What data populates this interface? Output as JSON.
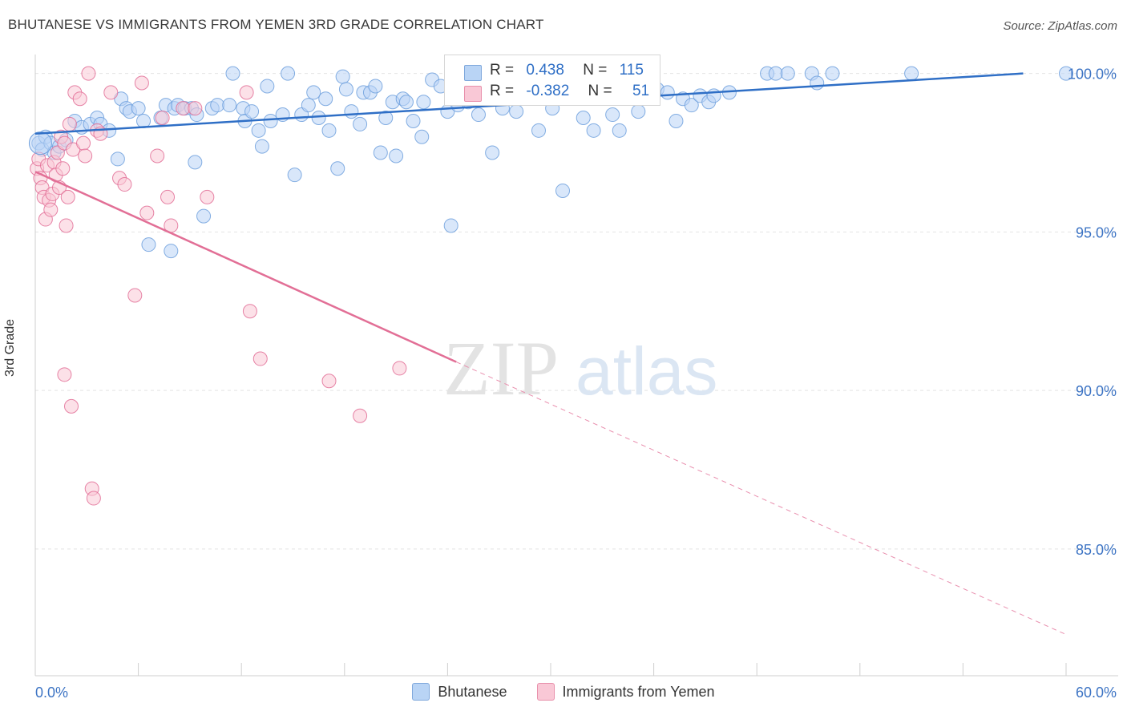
{
  "title": "BHUTANESE VS IMMIGRANTS FROM YEMEN 3RD GRADE CORRELATION CHART",
  "source": "Source: ZipAtlas.com",
  "watermark": {
    "zip": "ZIP",
    "atlas": "atlas"
  },
  "stats": [
    {
      "r_label": "R =",
      "r_value": "0.438",
      "n_label": "N =",
      "n_value": "115",
      "color": "#b9d4f5"
    },
    {
      "r_label": "R =",
      "r_value": "-0.382",
      "n_label": "N =",
      "n_value": "51",
      "color": "#f9c8d6"
    }
  ],
  "legend": [
    {
      "label": "Bhutanese"
    },
    {
      "label": "Immigrants from Yemen"
    }
  ],
  "chart_data": {
    "type": "scatter",
    "title": "BHUTANESE VS IMMIGRANTS FROM YEMEN 3RD GRADE CORRELATION CHART",
    "xlabel": "",
    "ylabel": "3rd Grade",
    "xlim": [
      0,
      60
    ],
    "ylim": [
      81,
      100.8
    ],
    "x_tick_labels": [
      "0.0%",
      "60.0%"
    ],
    "y_ticks": [
      100,
      95,
      90,
      85
    ],
    "y_tick_labels": [
      "100.0%",
      "95.0%",
      "90.0%",
      "85.0%"
    ],
    "grid": true,
    "legend_position": "bottom",
    "series": [
      {
        "name": "Bhutanese",
        "color": "#6fa0dd",
        "fill": "#b9d4f5",
        "trend": {
          "x": [
            0,
            57.5
          ],
          "y": [
            98.1,
            100
          ]
        },
        "points": [
          [
            0.2,
            97.8
          ],
          [
            0.4,
            97.6
          ],
          [
            0.6,
            98.0
          ],
          [
            0.9,
            97.8
          ],
          [
            1.1,
            97.5
          ],
          [
            1.4,
            97.7
          ],
          [
            1.8,
            97.9
          ],
          [
            2.3,
            98.5
          ],
          [
            2.7,
            98.3
          ],
          [
            3.2,
            98.4
          ],
          [
            3.6,
            98.6
          ],
          [
            3.8,
            98.4
          ],
          [
            4.3,
            98.2
          ],
          [
            4.8,
            97.3
          ],
          [
            5.0,
            99.2
          ],
          [
            5.3,
            98.9
          ],
          [
            5.5,
            98.8
          ],
          [
            6.0,
            98.9
          ],
          [
            6.3,
            98.5
          ],
          [
            6.6,
            94.6
          ],
          [
            7.3,
            98.6
          ],
          [
            7.6,
            99.0
          ],
          [
            7.9,
            94.4
          ],
          [
            8.1,
            98.9
          ],
          [
            8.3,
            99.0
          ],
          [
            8.7,
            98.9
          ],
          [
            9.1,
            98.9
          ],
          [
            9.3,
            97.2
          ],
          [
            9.4,
            98.7
          ],
          [
            9.8,
            95.5
          ],
          [
            10.3,
            98.9
          ],
          [
            10.6,
            99.0
          ],
          [
            11.3,
            99.0
          ],
          [
            11.5,
            100.0
          ],
          [
            12.1,
            98.9
          ],
          [
            12.2,
            98.5
          ],
          [
            12.6,
            98.8
          ],
          [
            13.0,
            98.2
          ],
          [
            13.2,
            97.7
          ],
          [
            13.5,
            99.6
          ],
          [
            13.7,
            98.5
          ],
          [
            14.4,
            98.7
          ],
          [
            14.7,
            100.0
          ],
          [
            15.1,
            96.8
          ],
          [
            15.5,
            98.7
          ],
          [
            15.9,
            99.0
          ],
          [
            16.2,
            99.4
          ],
          [
            16.5,
            98.6
          ],
          [
            16.9,
            99.2
          ],
          [
            17.1,
            98.2
          ],
          [
            17.6,
            97.0
          ],
          [
            17.9,
            99.9
          ],
          [
            18.1,
            99.5
          ],
          [
            18.4,
            98.8
          ],
          [
            18.9,
            98.4
          ],
          [
            19.1,
            99.4
          ],
          [
            19.5,
            99.4
          ],
          [
            19.8,
            99.6
          ],
          [
            20.1,
            97.5
          ],
          [
            20.4,
            98.6
          ],
          [
            20.8,
            99.1
          ],
          [
            21.0,
            97.4
          ],
          [
            21.4,
            99.2
          ],
          [
            21.6,
            99.1
          ],
          [
            22.0,
            98.5
          ],
          [
            22.5,
            98.0
          ],
          [
            22.6,
            99.1
          ],
          [
            23.1,
            99.8
          ],
          [
            23.6,
            99.6
          ],
          [
            24.0,
            98.8
          ],
          [
            24.2,
            95.2
          ],
          [
            24.6,
            99.0
          ],
          [
            25.2,
            99.1
          ],
          [
            25.8,
            98.7
          ],
          [
            26.3,
            99.3
          ],
          [
            26.6,
            97.5
          ],
          [
            27.2,
            98.9
          ],
          [
            27.5,
            99.6
          ],
          [
            28.0,
            98.8
          ],
          [
            28.4,
            99.8
          ],
          [
            28.9,
            99.5
          ],
          [
            29.3,
            98.2
          ],
          [
            30.1,
            98.9
          ],
          [
            30.7,
            96.3
          ],
          [
            31.3,
            99.5
          ],
          [
            31.9,
            98.6
          ],
          [
            32.5,
            98.2
          ],
          [
            33.0,
            99.3
          ],
          [
            33.6,
            98.7
          ],
          [
            34.0,
            98.2
          ],
          [
            34.6,
            99.6
          ],
          [
            35.1,
            98.8
          ],
          [
            35.7,
            99.4
          ],
          [
            36.2,
            99.5
          ],
          [
            36.8,
            99.4
          ],
          [
            37.3,
            98.5
          ],
          [
            37.7,
            99.2
          ],
          [
            38.2,
            99.0
          ],
          [
            38.7,
            99.3
          ],
          [
            39.2,
            99.1
          ],
          [
            39.5,
            99.3
          ],
          [
            40.4,
            99.4
          ],
          [
            42.6,
            100.0
          ],
          [
            43.1,
            100.0
          ],
          [
            43.8,
            100.0
          ],
          [
            45.2,
            100.0
          ],
          [
            45.5,
            99.7
          ],
          [
            46.4,
            100.0
          ],
          [
            51.0,
            100.0
          ],
          [
            60.0,
            100.0
          ]
        ]
      },
      {
        "name": "Immigrants from Yemen",
        "color": "#e26f96",
        "fill": "#f9c8d6",
        "trend": {
          "x": [
            0,
            24.5
          ],
          "y": [
            96.9,
            90.9
          ]
        },
        "trend_extension": {
          "x": [
            24.5,
            60
          ],
          "y": [
            90.9,
            82.3
          ]
        },
        "points": [
          [
            0.1,
            97.0
          ],
          [
            0.2,
            97.3
          ],
          [
            0.3,
            96.7
          ],
          [
            0.4,
            96.4
          ],
          [
            0.5,
            96.1
          ],
          [
            0.6,
            95.4
          ],
          [
            0.7,
            97.1
          ],
          [
            0.8,
            96.0
          ],
          [
            0.9,
            95.7
          ],
          [
            1.0,
            96.2
          ],
          [
            1.1,
            97.2
          ],
          [
            1.2,
            96.8
          ],
          [
            1.3,
            97.5
          ],
          [
            1.4,
            96.4
          ],
          [
            1.5,
            98.0
          ],
          [
            1.6,
            97.0
          ],
          [
            1.7,
            97.8
          ],
          [
            1.8,
            95.2
          ],
          [
            1.9,
            96.1
          ],
          [
            2.0,
            98.4
          ],
          [
            2.1,
            89.5
          ],
          [
            2.2,
            97.6
          ],
          [
            2.3,
            99.4
          ],
          [
            2.6,
            99.2
          ],
          [
            2.8,
            97.8
          ],
          [
            2.9,
            97.4
          ],
          [
            3.1,
            100.0
          ],
          [
            3.3,
            86.9
          ],
          [
            3.4,
            86.6
          ],
          [
            3.6,
            98.2
          ],
          [
            3.8,
            98.1
          ],
          [
            4.4,
            99.4
          ],
          [
            4.9,
            96.7
          ],
          [
            5.2,
            96.5
          ],
          [
            5.8,
            93.0
          ],
          [
            6.2,
            99.7
          ],
          [
            6.5,
            95.6
          ],
          [
            7.1,
            97.4
          ],
          [
            7.4,
            98.6
          ],
          [
            7.7,
            96.1
          ],
          [
            7.9,
            95.2
          ],
          [
            8.6,
            98.9
          ],
          [
            9.3,
            98.9
          ],
          [
            10.0,
            96.1
          ],
          [
            12.3,
            99.4
          ],
          [
            12.5,
            92.5
          ],
          [
            13.1,
            91.0
          ],
          [
            17.1,
            90.3
          ],
          [
            18.9,
            89.2
          ],
          [
            21.2,
            90.7
          ],
          [
            1.7,
            90.5
          ]
        ]
      }
    ]
  }
}
